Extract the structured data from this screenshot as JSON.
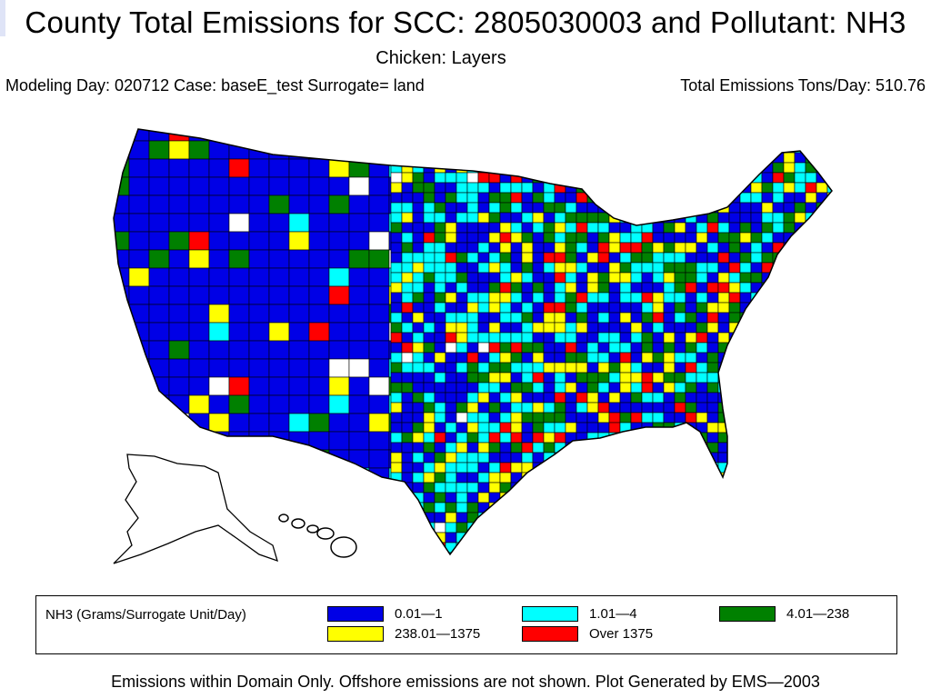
{
  "header": {
    "title": "County Total Emissions for SCC: 2805030003 and Pollutant: NH3",
    "subtitle": "Chicken: Layers",
    "info_left": "Modeling Day: 020712 Case: baseE_test Surrogate=  land",
    "info_right": "Total Emissions Tons/Day: 510.76"
  },
  "colors": {
    "bin1": "#0000e6",
    "bin2": "#00ffff",
    "bin3": "#008000",
    "bin4": "#ffff00",
    "bin5": "#ff0000",
    "border": "#000000",
    "nodata": "#ffffff"
  },
  "legend": {
    "title": "NH3 (Grams/Surrogate Unit/Day)",
    "bins": [
      {
        "label": "0.01—1",
        "color": "#0000e6"
      },
      {
        "label": "1.01—4",
        "color": "#00ffff"
      },
      {
        "label": "4.01—238",
        "color": "#008000"
      },
      {
        "label": "238.01—1375",
        "color": "#ffff00"
      },
      {
        "label": "Over 1375",
        "color": "#ff0000"
      }
    ]
  },
  "footer": "Emissions within Domain Only. Offshore emissions are not shown. Plot Generated by EMS—2003"
}
